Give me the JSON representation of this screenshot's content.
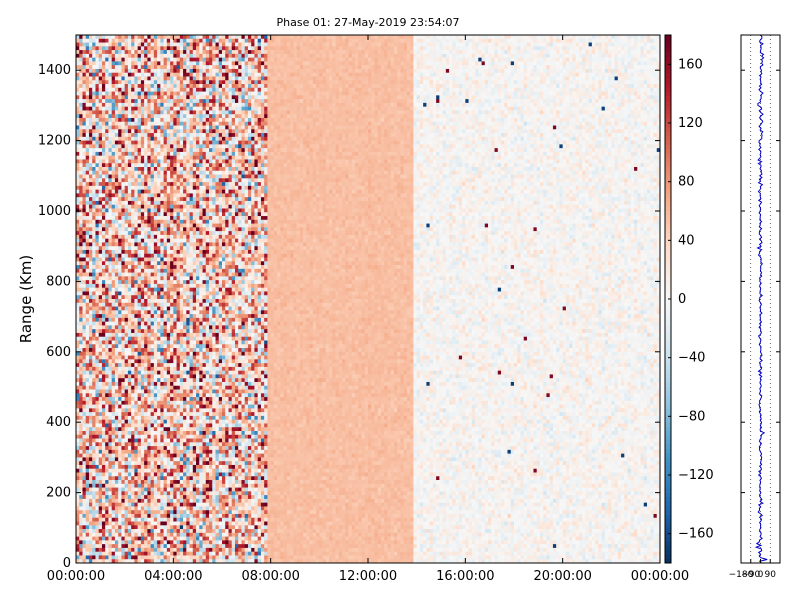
{
  "chart_data": [
    {
      "type": "heatmap",
      "title": "Phase 01: 27-May-2019 23:54:07",
      "xlabel": "",
      "ylabel": "Range (Km)",
      "x_ticks": [
        "00:00:00",
        "04:00:00",
        "08:00:00",
        "12:00:00",
        "16:00:00",
        "20:00:00",
        "00:00:00"
      ],
      "x_range_hours": [
        0,
        24
      ],
      "y_ticks": [
        0,
        200,
        400,
        600,
        800,
        1000,
        1200,
        1400
      ],
      "ylim": [
        0,
        1500
      ],
      "colormap": "RdBu_r",
      "colorbar": {
        "ticks": [
          160,
          120,
          80,
          40,
          0,
          -40,
          -80,
          -120,
          -160
        ],
        "range": [
          -180,
          180
        ]
      },
      "regions": [
        {
          "x_hours": [
            0,
            7.9
          ],
          "description": "noisy",
          "mean_value": 40,
          "spread": 140
        },
        {
          "x_hours": [
            7.9,
            13.9
          ],
          "description": "uniform",
          "mean_value": 55,
          "spread": 8
        },
        {
          "x_hours": [
            13.9,
            24
          ],
          "description": "near-zero",
          "mean_value": 2,
          "spread": 25
        }
      ]
    },
    {
      "type": "line",
      "title": "",
      "xlabel": "",
      "ylabel": "",
      "x_ticks": [
        "−180",
        "−90",
        "0",
        "90"
      ],
      "xlim": [
        -180,
        180
      ],
      "ylim": [
        0,
        1500
      ],
      "line_color": "#0000cc",
      "profile_center": 0,
      "profile_spread": 20
    }
  ]
}
